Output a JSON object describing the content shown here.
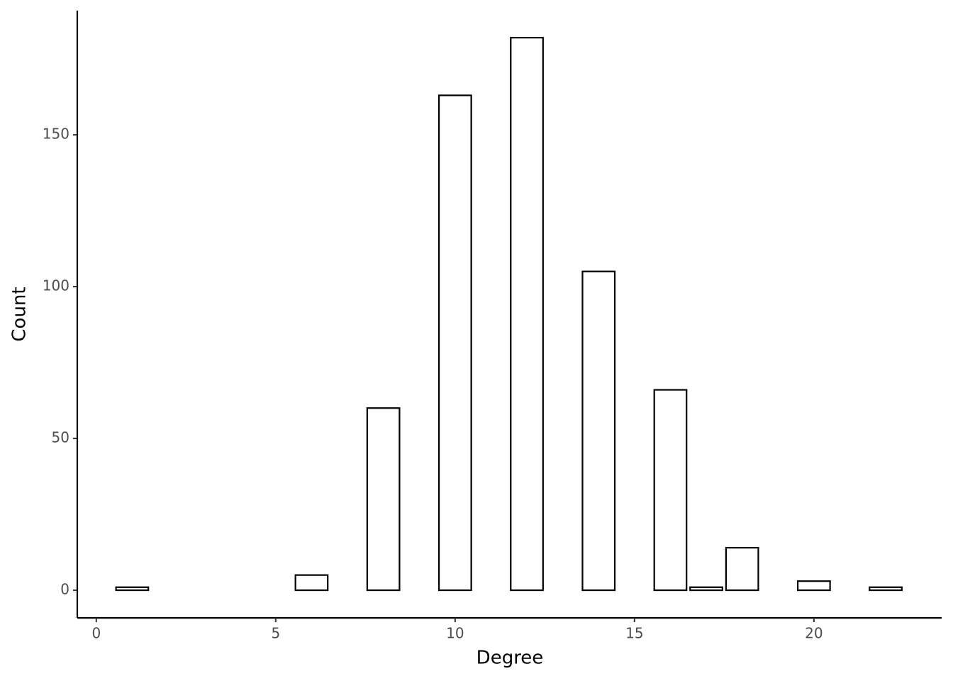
{
  "chart_data": {
    "type": "bar",
    "x_label": "Degree",
    "y_label": "Count",
    "x": [
      1,
      6,
      8,
      10,
      12,
      14,
      16,
      17,
      18,
      20,
      22
    ],
    "values": [
      1,
      5,
      60,
      163,
      182,
      105,
      66,
      1,
      14,
      3,
      1
    ],
    "color": "#ffffff",
    "edge_color": "#000000",
    "xlim": [
      -0.53,
      23.56
    ],
    "ylim": [
      -9.1,
      190.9
    ],
    "xticks": [
      0,
      5,
      10,
      15,
      20
    ],
    "yticks": [
      0,
      50,
      100,
      150
    ],
    "grid": false
  }
}
